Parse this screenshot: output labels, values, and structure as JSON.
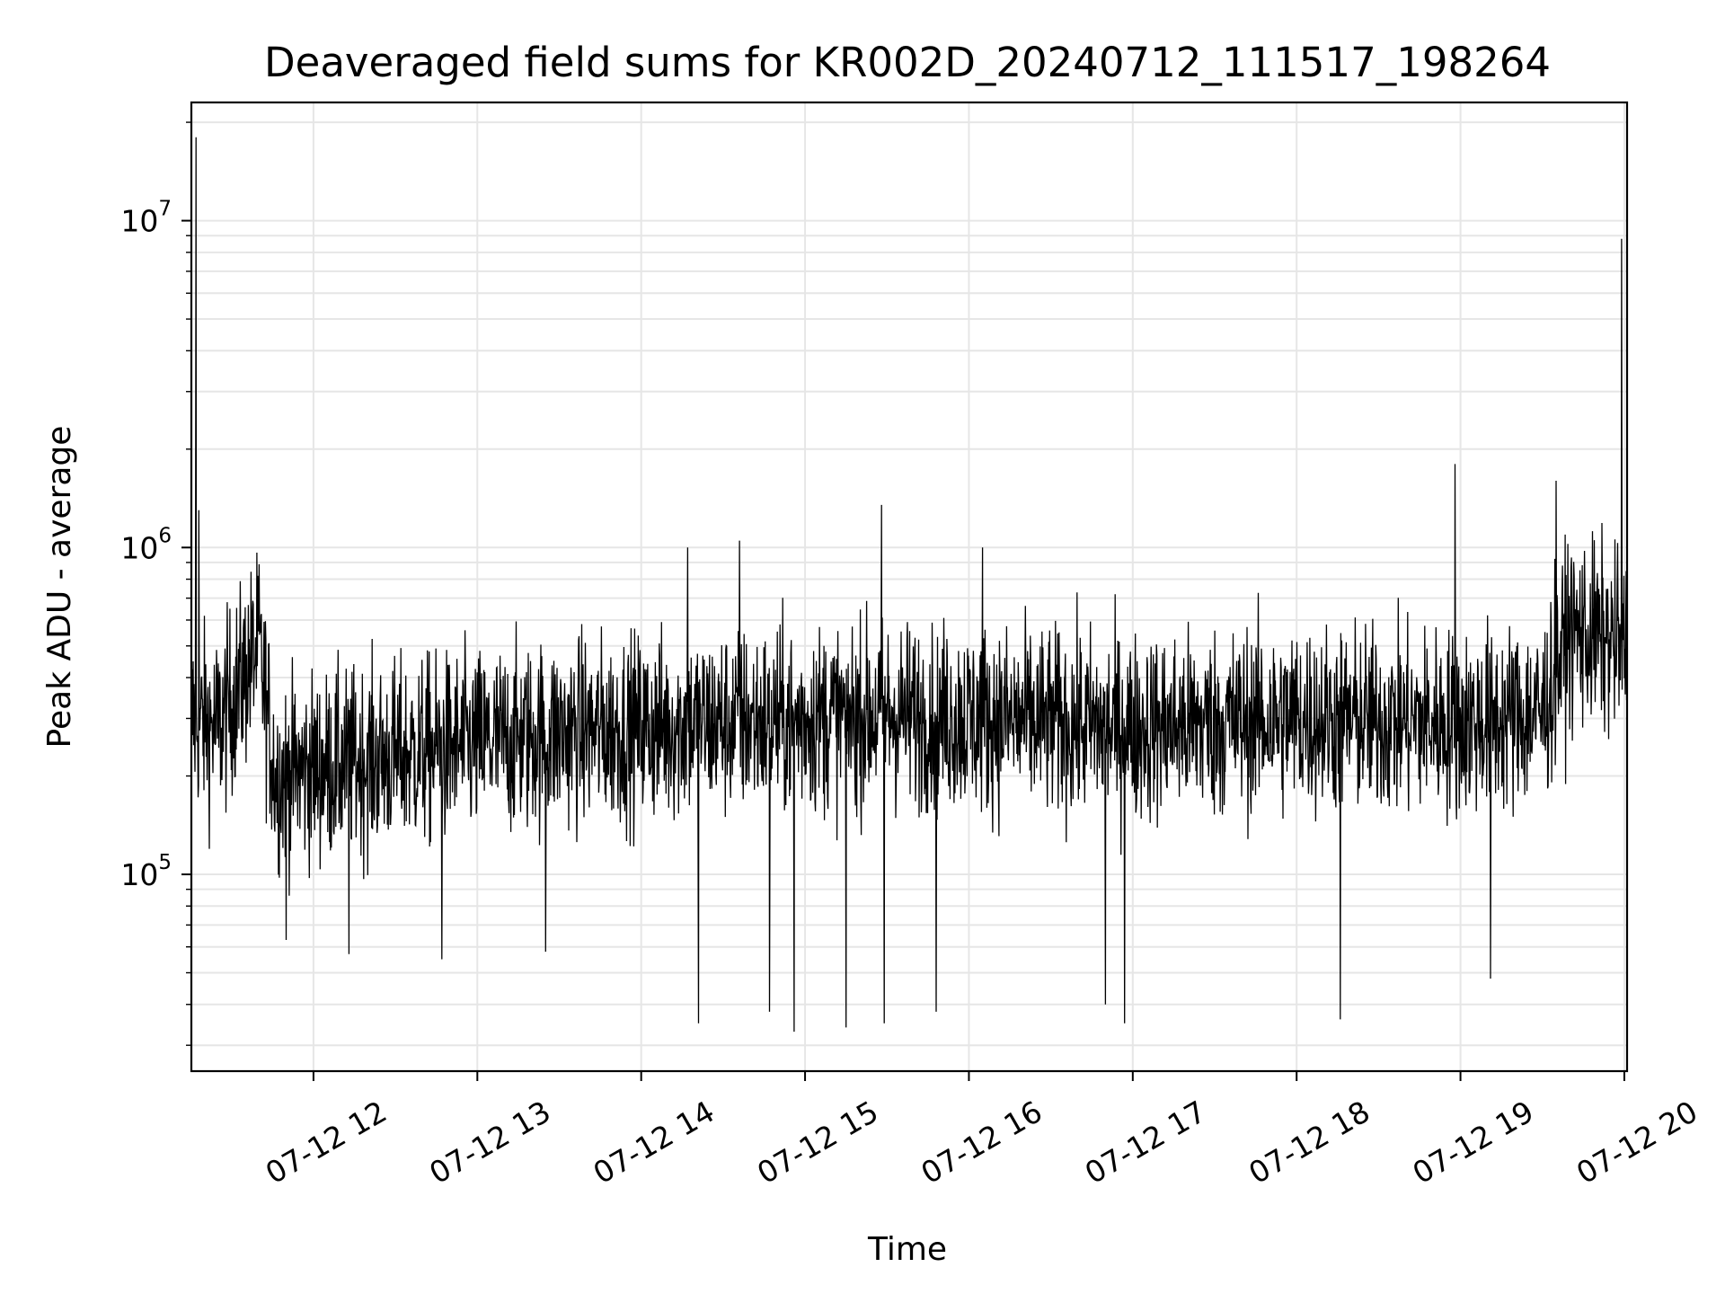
{
  "chart_data": {
    "type": "line",
    "title": "Deaveraged field sums for KR002D_20240712_111517_198264",
    "xlabel": "Time",
    "ylabel": "Peak ADU - average",
    "yscale": "log",
    "ylim": [
      25000,
      23000000
    ],
    "xlim": [
      "2024-07-12 11:15:17",
      "2024-07-12 20:01:00"
    ],
    "grid": true,
    "line_color": "#000000",
    "x_ticks": [
      {
        "value": "2024-07-12 12:00",
        "label": "07-12 12"
      },
      {
        "value": "2024-07-12 13:00",
        "label": "07-12 13"
      },
      {
        "value": "2024-07-12 14:00",
        "label": "07-12 14"
      },
      {
        "value": "2024-07-12 15:00",
        "label": "07-12 15"
      },
      {
        "value": "2024-07-12 16:00",
        "label": "07-12 16"
      },
      {
        "value": "2024-07-12 17:00",
        "label": "07-12 17"
      },
      {
        "value": "2024-07-12 18:00",
        "label": "07-12 18"
      },
      {
        "value": "2024-07-12 19:00",
        "label": "07-12 19"
      },
      {
        "value": "2024-07-12 20:00",
        "label": "07-12 20"
      }
    ],
    "y_ticks": [
      {
        "value": 100000,
        "base": "10",
        "exp": "5"
      },
      {
        "value": 1000000,
        "base": "10",
        "exp": "6"
      },
      {
        "value": 10000000,
        "base": "10",
        "exp": "7"
      }
    ],
    "series": [
      {
        "x": [
          "2024-07-12 11:15:17",
          "2024-07-12 11:25",
          "2024-07-12 11:40",
          "2024-07-12 11:46",
          "2024-07-12 12:00",
          "2024-07-12 12:30",
          "2024-07-12 13:00",
          "2024-07-12 13:30",
          "2024-07-12 14:00",
          "2024-07-12 14:30",
          "2024-07-12 15:00",
          "2024-07-12 15:30",
          "2024-07-12 16:00",
          "2024-07-12 16:30",
          "2024-07-12 17:00",
          "2024-07-12 17:30",
          "2024-07-12 18:00",
          "2024-07-12 18:30",
          "2024-07-12 19:00",
          "2024-07-12 19:30",
          "2024-07-12 19:40",
          "2024-07-12 20:00",
          "2024-07-12 20:01"
        ],
        "y": [
          300000,
          280000,
          500000,
          200000,
          210000,
          230000,
          250000,
          270000,
          280000,
          290000,
          300000,
          310000,
          300000,
          290000,
          280000,
          290000,
          300000,
          295000,
          290000,
          310000,
          560000,
          500000,
          520000
        ]
      }
    ],
    "spikes": [
      {
        "x": "2024-07-12 11:17",
        "y": 18000000
      },
      {
        "x": "2024-07-12 11:18",
        "y": 1300000
      },
      {
        "x": "2024-07-12 11:50",
        "y": 63000
      },
      {
        "x": "2024-07-12 12:13",
        "y": 57000
      },
      {
        "x": "2024-07-12 12:47",
        "y": 55000
      },
      {
        "x": "2024-07-12 13:25",
        "y": 58000
      },
      {
        "x": "2024-07-12 14:17",
        "y": 1000000
      },
      {
        "x": "2024-07-12 14:21",
        "y": 35000
      },
      {
        "x": "2024-07-12 14:36",
        "y": 1050000
      },
      {
        "x": "2024-07-12 14:47",
        "y": 38000
      },
      {
        "x": "2024-07-12 14:56",
        "y": 33000
      },
      {
        "x": "2024-07-12 15:15",
        "y": 34000
      },
      {
        "x": "2024-07-12 15:28",
        "y": 1350000
      },
      {
        "x": "2024-07-12 15:29",
        "y": 35000
      },
      {
        "x": "2024-07-12 15:48",
        "y": 38000
      },
      {
        "x": "2024-07-12 16:05",
        "y": 1000000
      },
      {
        "x": "2024-07-12 16:50",
        "y": 40000
      },
      {
        "x": "2024-07-12 16:57",
        "y": 35000
      },
      {
        "x": "2024-07-12 18:16",
        "y": 36000
      },
      {
        "x": "2024-07-12 18:58",
        "y": 1800000
      },
      {
        "x": "2024-07-12 19:11",
        "y": 48000
      },
      {
        "x": "2024-07-12 19:35",
        "y": 1600000
      },
      {
        "x": "2024-07-12 19:59",
        "y": 8800000
      }
    ]
  }
}
